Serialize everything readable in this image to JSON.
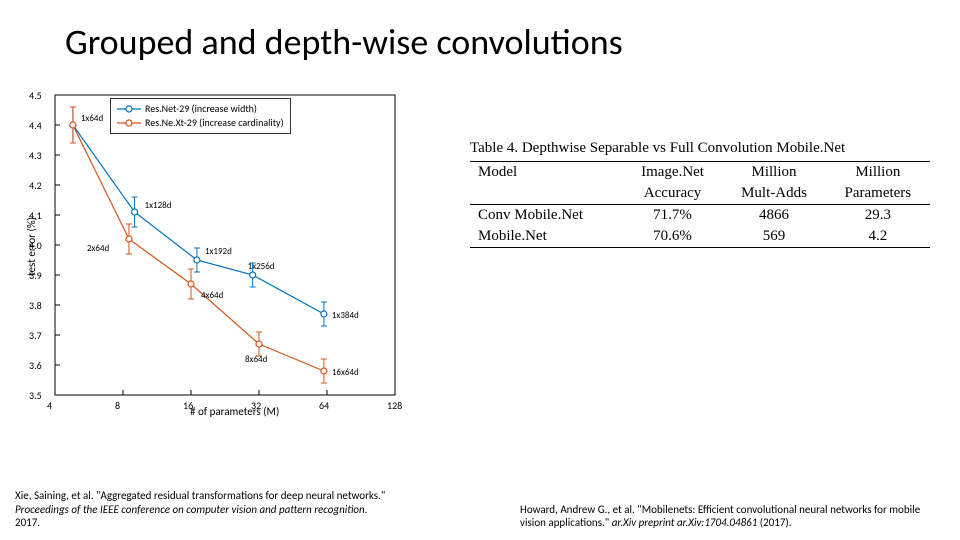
{
  "title": "Grouped and depth-wise convolutions",
  "chart": {
    "type": "line-scatter-errorbar",
    "xlabel": "# of parameters (M)",
    "ylabel": "test error (%)",
    "xlim": [
      4,
      128
    ],
    "ylim": [
      3.5,
      4.5
    ],
    "xscale": "log2",
    "xticks": [
      4,
      8,
      16,
      32,
      64,
      128
    ],
    "yticks": [
      3.5,
      3.6,
      3.7,
      3.8,
      3.9,
      4.0,
      4.1,
      4.2,
      4.3,
      4.4,
      4.5
    ],
    "background_color": "#ffffff",
    "grid": false,
    "box_color": "#000000",
    "series": [
      {
        "name": "Res.Net-29 (increase width)",
        "color": "#0072bd",
        "marker": "circle",
        "line_width": 1.2,
        "points": [
          {
            "x": 4.8,
            "y": 4.4,
            "err": 0.06,
            "label": "1x64d"
          },
          {
            "x": 9,
            "y": 4.11,
            "err": 0.05,
            "label": "1x128d"
          },
          {
            "x": 17,
            "y": 3.95,
            "err": 0.04,
            "label": "1x192d"
          },
          {
            "x": 30,
            "y": 3.9,
            "err": 0.04,
            "label": "1x256d"
          },
          {
            "x": 62,
            "y": 3.77,
            "err": 0.04,
            "label": "1x384d"
          }
        ]
      },
      {
        "name": "Res.Ne.Xt-29 (increase cardinality)",
        "color": "#d95319",
        "marker": "circle",
        "line_width": 1.2,
        "points": [
          {
            "x": 4.8,
            "y": 4.4,
            "err": 0.06,
            "label": ""
          },
          {
            "x": 8.5,
            "y": 4.02,
            "err": 0.05,
            "label": "2x64d"
          },
          {
            "x": 16,
            "y": 3.87,
            "err": 0.05,
            "label": "4x64d"
          },
          {
            "x": 32,
            "y": 3.67,
            "err": 0.04,
            "label": "8x64d"
          },
          {
            "x": 62,
            "y": 3.58,
            "err": 0.04,
            "label": "16x64d"
          }
        ]
      }
    ],
    "legend_position": "top-center"
  },
  "table": {
    "caption": "Table 4. Depthwise Separable vs Full Convolution Mobile.Net",
    "columns": [
      "Model",
      "Image.Net Accuracy",
      "Million Mult-Adds",
      "Million Parameters"
    ],
    "header_top": [
      "Model",
      "Image.Net",
      "Million",
      "Million"
    ],
    "header_bot": [
      "",
      "Accuracy",
      "Mult-Adds",
      "Parameters"
    ],
    "rows": [
      [
        "Conv Mobile.Net",
        "71.7%",
        "4866",
        "29.3"
      ],
      [
        "Mobile.Net",
        "70.6%",
        "569",
        "4.2"
      ]
    ]
  },
  "citations": {
    "left": {
      "prefix": "Xie, Saining, et al. \"Aggregated residual transformations for deep neural networks.\" ",
      "italic": "Proceedings of the IEEE conference on computer vision and pattern recognition.",
      "suffix": " 2017."
    },
    "right": {
      "prefix": "Howard, Andrew G., et al. \"Mobilenets: Efficient convolutional neural networks for mobile vision applications.\" ",
      "italic": "ar.Xiv preprint ar.Xiv:1704.04861",
      "suffix": " (2017)."
    }
  }
}
